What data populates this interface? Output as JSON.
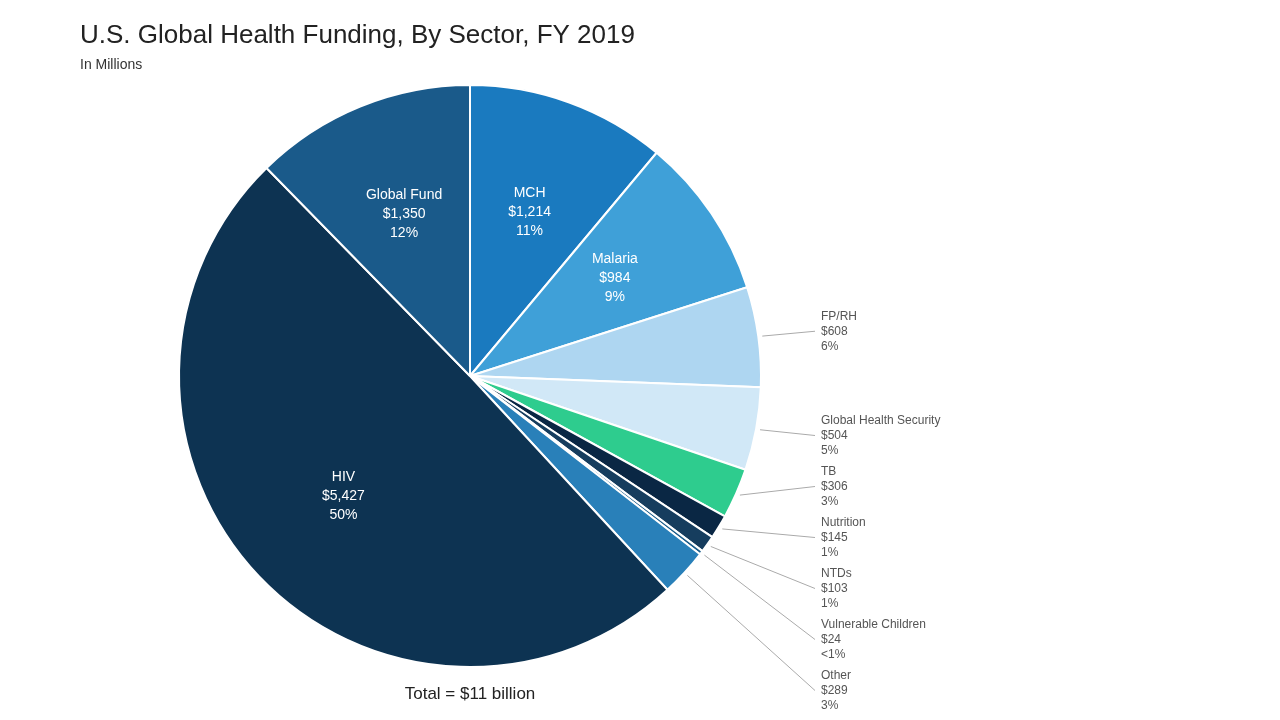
{
  "chart_data": {
    "type": "pie",
    "title": "U.S. Global Health Funding, By Sector, FY 2019",
    "subtitle": "In Millions",
    "annotations": [
      "Total = $11 billion"
    ],
    "categories": [
      "MCH",
      "Malaria",
      "FP/RH",
      "Global Health Security",
      "TB",
      "Nutrition",
      "NTDs",
      "Vulnerable Children",
      "Other",
      "HIV",
      "Global Fund"
    ],
    "values": [
      1214,
      984,
      608,
      504,
      306,
      145,
      103,
      24,
      289,
      5427,
      1350
    ],
    "colors": [
      "#1a7abf",
      "#3fa0d8",
      "#aed6f1",
      "#d1e8f7",
      "#2ecc8e",
      "#0a2744",
      "#163d5e",
      "#1a5c8a",
      "#2980b9",
      "#0d3352",
      "#1a5a8a"
    ],
    "data_labels": true,
    "value_labels": [
      "$1,214",
      "$984",
      "$608",
      "$504",
      "$306",
      "$145",
      "$103",
      "$24",
      "$289",
      "$5,427",
      "$1,350"
    ],
    "percents": [
      11,
      9,
      6,
      5,
      3,
      1,
      1,
      0,
      3,
      50,
      12
    ],
    "percent_labels": [
      "11%",
      "9%",
      "6%",
      "5%",
      "3%",
      "1%",
      "1%",
      "<1%",
      "3%",
      "50%",
      "12%"
    ]
  }
}
